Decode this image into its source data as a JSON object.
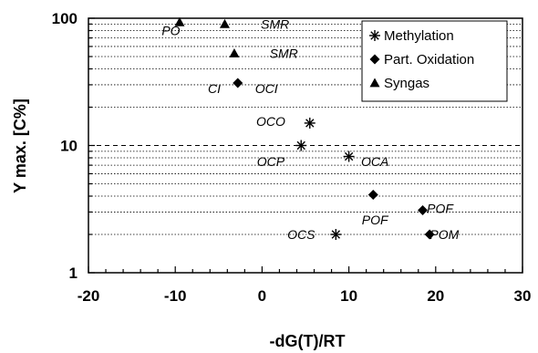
{
  "chart_data": {
    "type": "scatter",
    "xlabel": "-dG(T)/RT",
    "ylabel": "Y max. [C%]",
    "xlim": [
      -20,
      30
    ],
    "ylim": [
      1,
      100
    ],
    "y_scale": "log",
    "x_ticks": [
      "-20",
      "-10",
      "0",
      "10",
      "20",
      "30"
    ],
    "y_ticks": [
      "1",
      "10",
      "100"
    ],
    "grid": "dotted horizontal minor gridlines, dashed major gridlines",
    "legend_position": "top-right",
    "series": [
      {
        "name": "Methylation",
        "marker": "asterisk",
        "points": [
          {
            "x": 5.5,
            "y": 15
          },
          {
            "x": 4.5,
            "y": 10
          },
          {
            "x": 10,
            "y": 8.2
          },
          {
            "x": 8.5,
            "y": 2
          }
        ]
      },
      {
        "name": "Part. Oxidation",
        "marker": "diamond",
        "points": [
          {
            "x": -2.8,
            "y": 31
          },
          {
            "x": 12.8,
            "y": 4.1
          },
          {
            "x": 18.5,
            "y": 3.1
          },
          {
            "x": 19.3,
            "y": 2
          }
        ]
      },
      {
        "name": "Syngas",
        "marker": "triangle",
        "points": [
          {
            "x": -9.5,
            "y": 93
          },
          {
            "x": -4.3,
            "y": 90
          },
          {
            "x": -3.2,
            "y": 53
          }
        ]
      }
    ],
    "annotations": [
      {
        "text": "PO",
        "x": -10.5,
        "y": 80
      },
      {
        "text": "SMR",
        "x": 1.5,
        "y": 90
      },
      {
        "text": "SMR",
        "x": 2.5,
        "y": 53
      },
      {
        "text": "CI",
        "x": -5.5,
        "y": 28
      },
      {
        "text": "OCI",
        "x": 0.5,
        "y": 28
      },
      {
        "text": "OCO",
        "x": 1.0,
        "y": 15.5
      },
      {
        "text": "OCP",
        "x": 1.0,
        "y": 7.5
      },
      {
        "text": "OCA",
        "x": 13.0,
        "y": 7.5
      },
      {
        "text": "POF",
        "x": 13.0,
        "y": 2.6
      },
      {
        "text": "POF",
        "x": 20.5,
        "y": 3.2
      },
      {
        "text": "POM",
        "x": 21.0,
        "y": 2.0
      },
      {
        "text": "OCS",
        "x": 4.5,
        "y": 2.0
      }
    ]
  }
}
